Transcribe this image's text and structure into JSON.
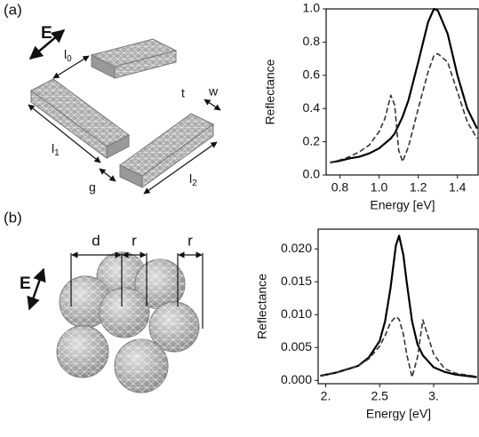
{
  "panels": [
    {
      "label": "(a)",
      "field": "E",
      "l0": {
        "base": "l",
        "sub": "0"
      },
      "t": "t",
      "w": "w",
      "l1": {
        "base": "l",
        "sub": "1"
      },
      "g": "g",
      "l2": {
        "base": "l",
        "sub": "2"
      }
    },
    {
      "label": "(b)",
      "field": "E",
      "d": "d",
      "r1": "r",
      "r2": "r"
    }
  ],
  "chart_data": [
    {
      "type": "line",
      "xlabel": "Energy [eV]",
      "ylabel": "Reflectance",
      "x": [
        0.75,
        0.8,
        0.85,
        0.9,
        0.95,
        1.0,
        1.03,
        1.06,
        1.08,
        1.1,
        1.12,
        1.15,
        1.2,
        1.25,
        1.28,
        1.3,
        1.35,
        1.4,
        1.45,
        1.5
      ],
      "xlim": [
        0.73,
        1.51
      ],
      "xticks": [
        0.8,
        {
          "value": 1.0,
          "label": "1.0"
        },
        1.2,
        1.4
      ],
      "ylim": [
        0,
        1.0
      ],
      "yticks": [
        {
          "value": 0,
          "label": "0.0"
        },
        0.2,
        0.4,
        0.6,
        0.8,
        {
          "value": 1.0,
          "label": "1.0"
        }
      ],
      "series": [
        {
          "color": "#000000",
          "dash": false,
          "values": [
            0.075,
            0.085,
            0.1,
            0.11,
            0.13,
            0.16,
            0.19,
            0.22,
            0.25,
            0.3,
            0.35,
            0.45,
            0.68,
            0.92,
            1.0,
            0.99,
            0.85,
            0.6,
            0.4,
            0.28
          ]
        },
        {
          "color": "#333333",
          "dash": true,
          "values": [
            0.075,
            0.09,
            0.11,
            0.14,
            0.18,
            0.26,
            0.34,
            0.48,
            0.42,
            0.15,
            0.08,
            0.17,
            0.4,
            0.62,
            0.72,
            0.73,
            0.68,
            0.5,
            0.32,
            0.22
          ]
        }
      ]
    },
    {
      "type": "line",
      "xlabel": "Energy [eV]",
      "ylabel": "Reflectance",
      "x": [
        1.95,
        2.1,
        2.3,
        2.4,
        2.5,
        2.55,
        2.6,
        2.65,
        2.68,
        2.72,
        2.75,
        2.8,
        2.85,
        2.9,
        3.0,
        3.1,
        3.2,
        3.4
      ],
      "xlim": [
        1.93,
        3.42
      ],
      "xticks": [
        {
          "value": 2.0,
          "label": "2."
        },
        2.5,
        {
          "value": 3.0,
          "label": "3."
        }
      ],
      "ylim": [
        -0.0005,
        0.023
      ],
      "yticks": [
        {
          "value": 0,
          "label": "0.000"
        },
        0.005,
        {
          "value": 0.01,
          "label": "0.010"
        },
        0.015,
        {
          "value": 0.02,
          "label": "0.020"
        }
      ],
      "series": [
        {
          "color": "#000000",
          "dash": false,
          "values": [
            0.0007,
            0.0012,
            0.0022,
            0.0035,
            0.006,
            0.009,
            0.014,
            0.0205,
            0.022,
            0.019,
            0.015,
            0.009,
            0.0055,
            0.0038,
            0.002,
            0.0013,
            0.0009,
            0.0005
          ]
        },
        {
          "color": "#333333",
          "dash": true,
          "values": [
            0.0007,
            0.0012,
            0.0022,
            0.0033,
            0.0052,
            0.0068,
            0.0088,
            0.0097,
            0.0093,
            0.007,
            0.004,
            0.0005,
            0.0035,
            0.0092,
            0.004,
            0.0018,
            0.0011,
            0.0006
          ]
        }
      ]
    }
  ]
}
